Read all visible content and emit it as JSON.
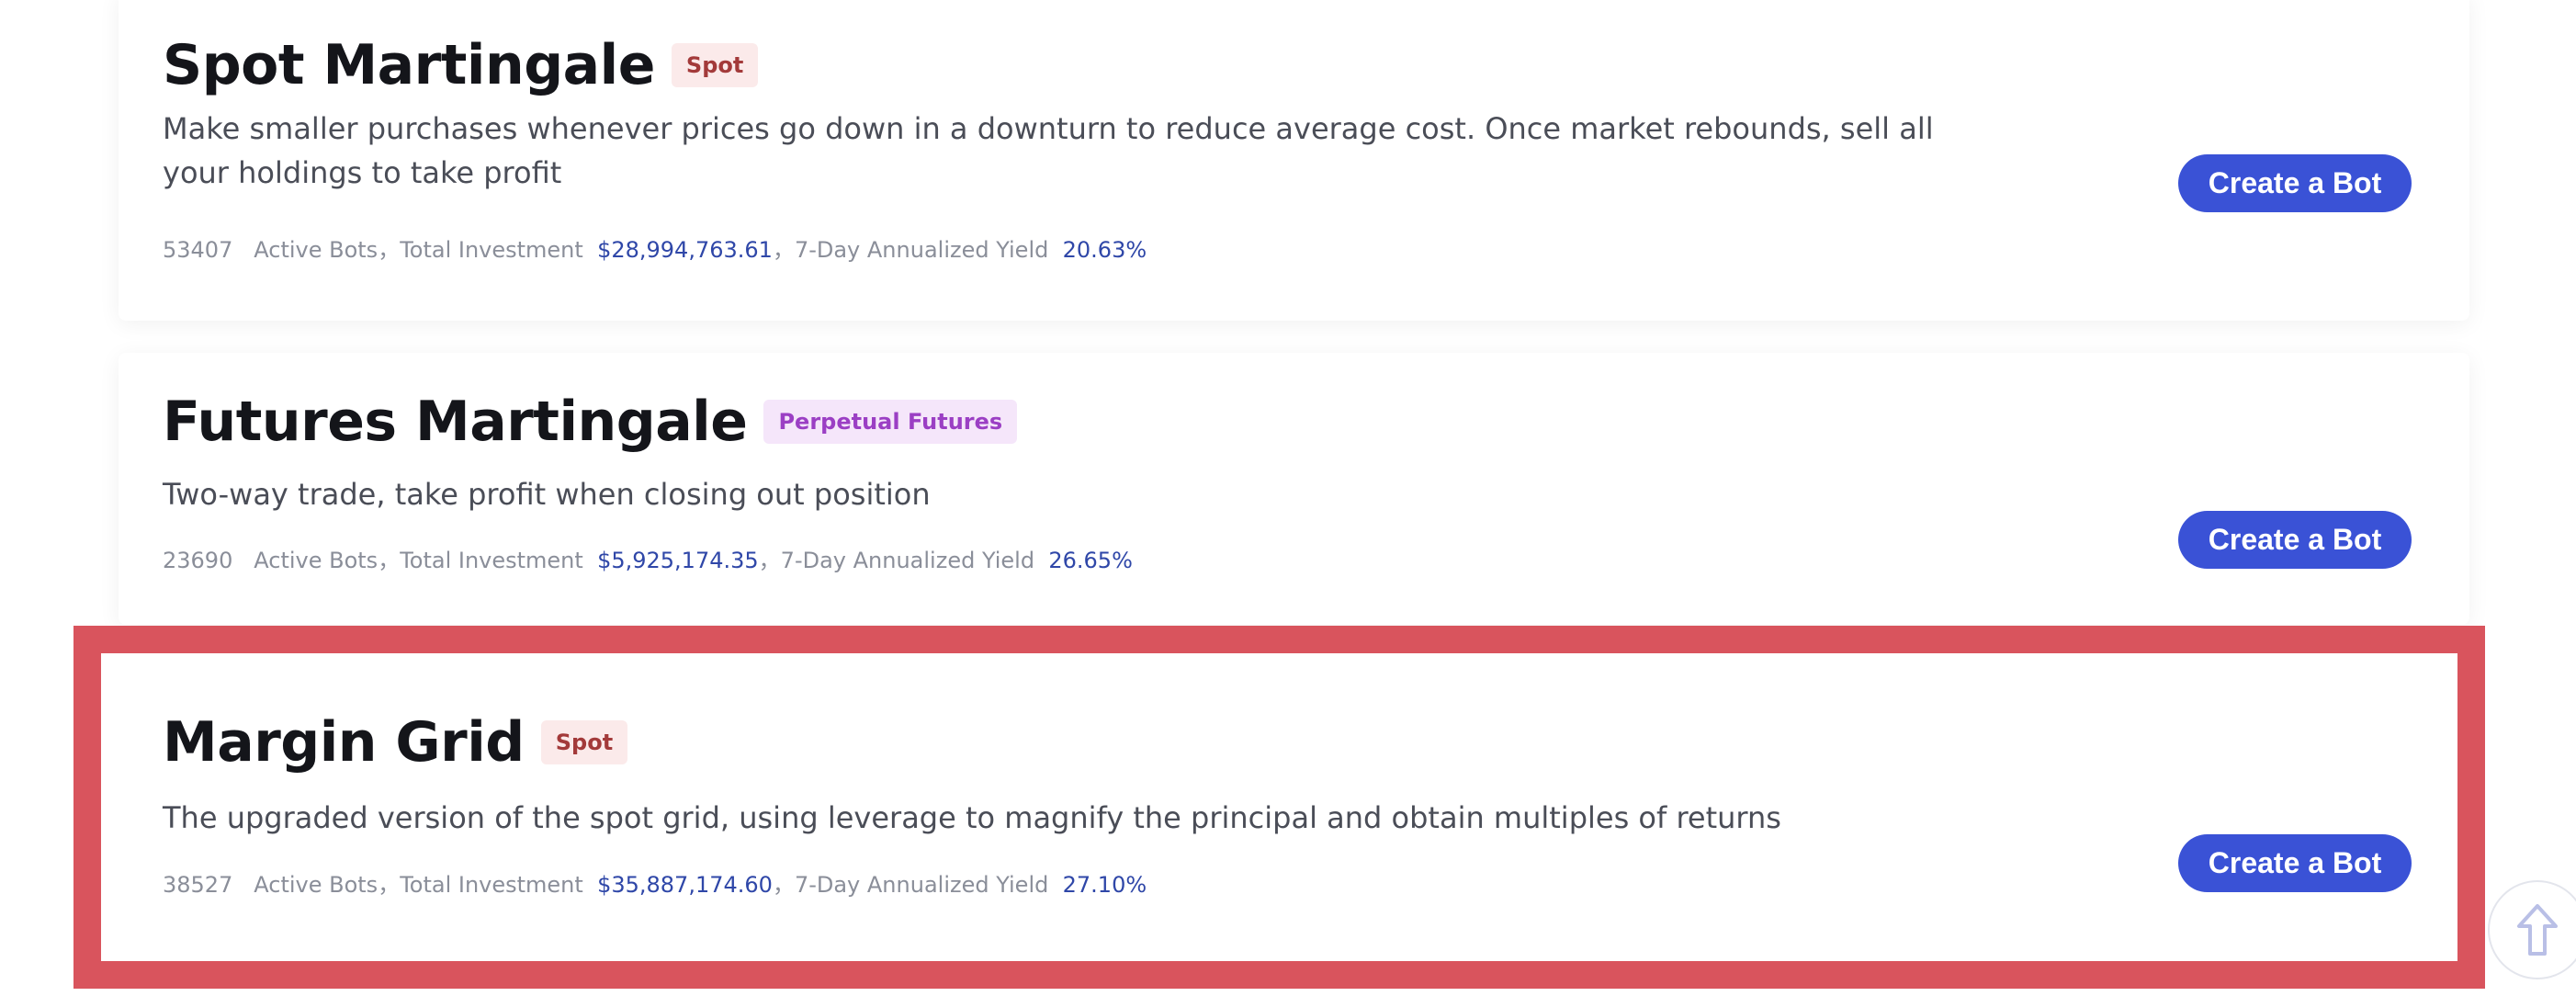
{
  "cards": [
    {
      "title": "Spot Martingale",
      "tag": "Spot",
      "description": "Make smaller purchases whenever prices go down in a downturn to reduce average cost. Once market rebounds, sell all your holdings to take profit",
      "active_bots": "53407",
      "active_bots_label": "Active Bots",
      "separator": "，",
      "total_investment_label": "Total Investment",
      "total_investment": "$28,994,763.61",
      "yield_label": "7-Day Annualized Yield",
      "yield": "20.63%",
      "button": "Create a Bot"
    },
    {
      "title": "Futures Martingale",
      "tag": "Perpetual Futures",
      "description": "Two-way trade, take profit when closing out position",
      "active_bots": "23690",
      "active_bots_label": "Active Bots",
      "separator": "，",
      "total_investment_label": "Total Investment",
      "total_investment": "$5,925,174.35",
      "yield_label": "7-Day Annualized Yield",
      "yield": "26.65%",
      "button": "Create a Bot"
    },
    {
      "title": "Margin Grid",
      "tag": "Spot",
      "description": "The upgraded version of the spot grid, using leverage to magnify the principal and obtain multiples of returns",
      "active_bots": "38527",
      "active_bots_label": "Active Bots",
      "separator": "，",
      "total_investment_label": "Total Investment",
      "total_investment": "$35,887,174.60",
      "yield_label": "7-Day Annualized Yield",
      "yield": "27.10%",
      "button": "Create a Bot"
    }
  ]
}
